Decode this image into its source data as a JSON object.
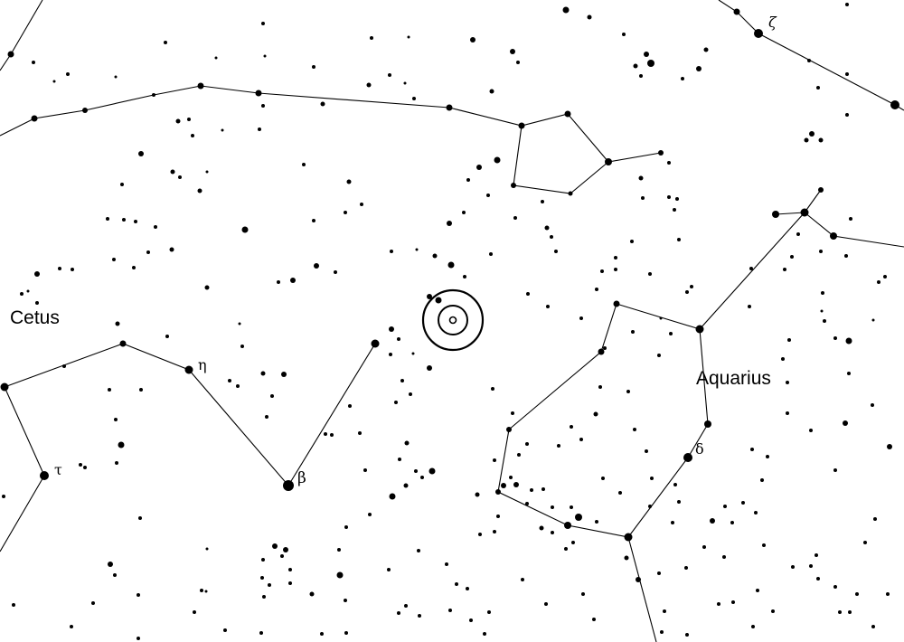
{
  "map": {
    "constellations": [
      {
        "name": "Cetus"
      },
      {
        "name": "Aquarius"
      }
    ],
    "star_labels": [
      {
        "text": "ζ"
      },
      {
        "text": "η"
      },
      {
        "text": "β"
      },
      {
        "text": "τ"
      },
      {
        "text": "δ"
      }
    ],
    "target_marker": {
      "description": "target-bullseye"
    },
    "colors": {
      "background": "#ffffff",
      "ink": "#000000"
    }
  }
}
